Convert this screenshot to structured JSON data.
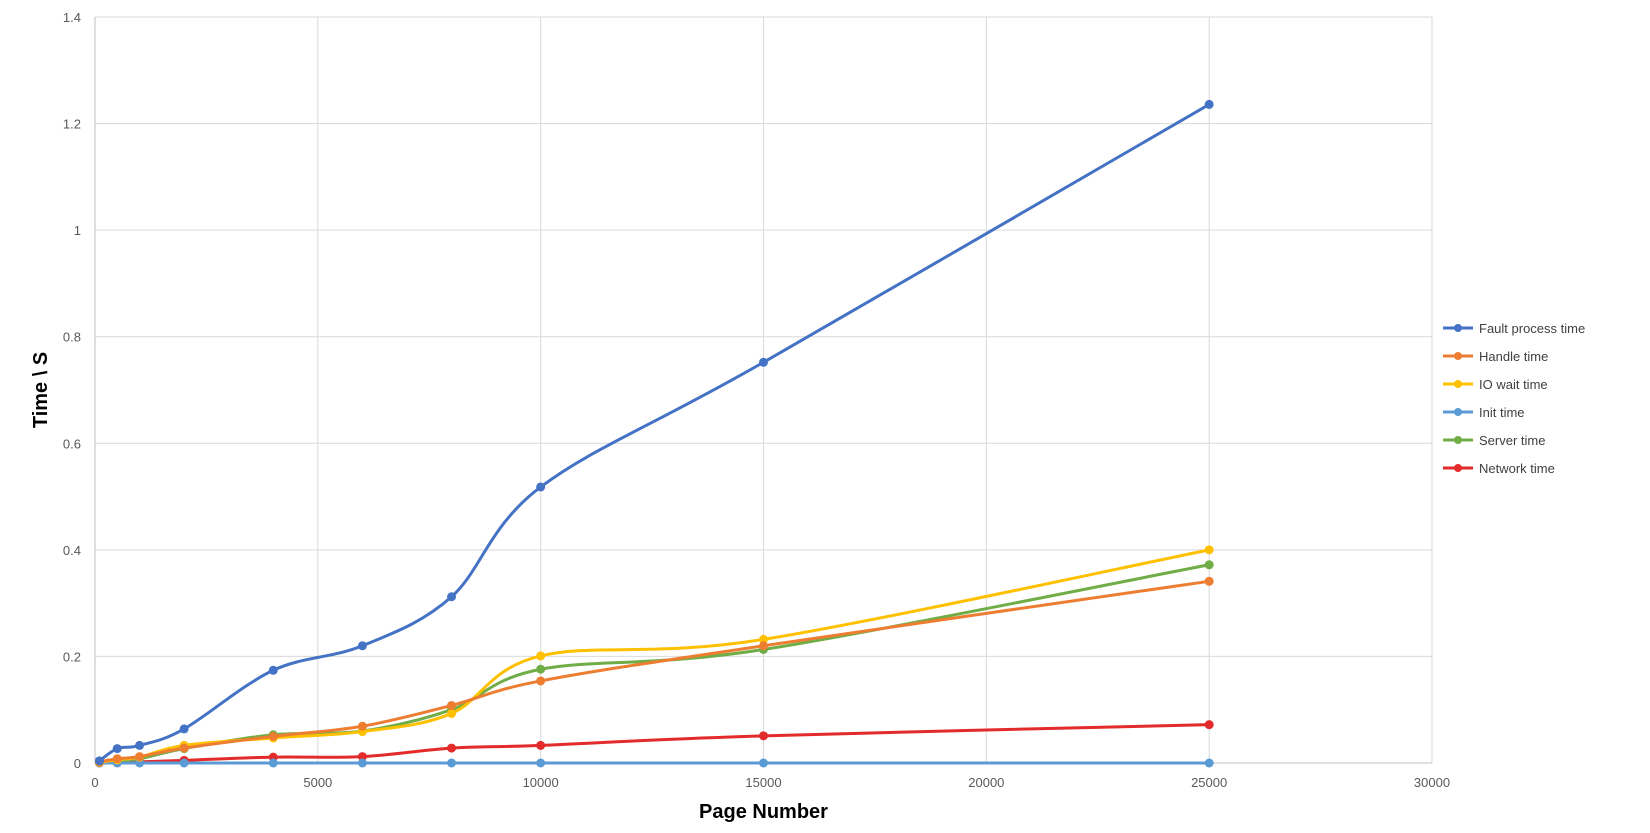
{
  "chart_data": {
    "type": "line",
    "title": "",
    "xlabel": "Page Number",
    "ylabel": "Time \\ S",
    "xlim": [
      0,
      30000
    ],
    "ylim": [
      0,
      1.4
    ],
    "x_ticks": [
      0,
      5000,
      10000,
      15000,
      20000,
      25000,
      30000
    ],
    "y_ticks": [
      0,
      0.2,
      0.4,
      0.6,
      0.8,
      1,
      1.2,
      1.4
    ],
    "x_tick_labels": [
      "0",
      "5000",
      "10000",
      "15000",
      "20000",
      "25000",
      "30000"
    ],
    "y_tick_labels": [
      "0",
      "0.2",
      "0.4",
      "0.6",
      "0.8",
      "1",
      "1.2",
      "1.4"
    ],
    "grid": true,
    "smooth": true,
    "legend_position": "right",
    "x": [
      100,
      500,
      1000,
      2000,
      4000,
      6000,
      8000,
      10000,
      15000,
      25000
    ],
    "series": [
      {
        "name": "Fault process time",
        "color": "#4472c4",
        "values": [
          0.004,
          0.027,
          0.033,
          0.064,
          0.174,
          0.22,
          0.312,
          0.518,
          0.752,
          1.236
        ]
      },
      {
        "name": "Handle time",
        "color": "#ed7d31",
        "values": [
          0.002,
          0.008,
          0.012,
          0.028,
          0.05,
          0.069,
          0.108,
          0.154,
          0.22,
          0.341
        ]
      },
      {
        "name": "IO wait time",
        "color": "#ffc000",
        "values": [
          0.001,
          0.006,
          0.011,
          0.033,
          0.047,
          0.059,
          0.093,
          0.201,
          0.232,
          0.4
        ]
      },
      {
        "name": "Init time",
        "color": "#5b9bd5",
        "values": [
          0.0,
          0.0,
          0.0,
          0.0,
          0.0,
          0.0,
          0.0,
          0.0,
          0.0,
          0.0
        ]
      },
      {
        "name": "Server time",
        "color": "#70ad47",
        "values": [
          0.001,
          0.005,
          0.008,
          0.027,
          0.053,
          0.06,
          0.1,
          0.176,
          0.213,
          0.372
        ]
      },
      {
        "name": "Network time",
        "color": "#e32b2b",
        "values": [
          0.0,
          0.001,
          0.002,
          0.005,
          0.011,
          0.012,
          0.028,
          0.033,
          0.051,
          0.072
        ]
      }
    ]
  }
}
